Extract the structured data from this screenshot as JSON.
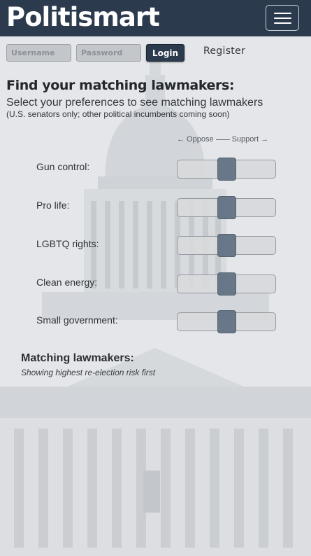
{
  "brand": {
    "name": "Politismart"
  },
  "navbar": {
    "menu_icon": "hamburger-menu-icon"
  },
  "login": {
    "username_placeholder": "Username",
    "password_placeholder": "Password",
    "login_label": "Login",
    "register_label": "Register"
  },
  "intro": {
    "heading": "Find your matching lawmakers:",
    "subheading": "Select your preferences to see matching lawmakers",
    "note": "(U.S. senators only; other political incumbents coming soon)"
  },
  "scale": {
    "oppose": "← Oppose",
    "support": "Support →"
  },
  "preferences": [
    {
      "label": "Gun control:",
      "value": 0.5
    },
    {
      "label": "Pro life:",
      "value": 0.5
    },
    {
      "label": "LGBTQ rights:",
      "value": 0.5
    },
    {
      "label": "Clean energy:",
      "value": 0.5
    },
    {
      "label": "Small government:",
      "value": 0.5
    }
  ],
  "results": {
    "title": "Matching lawmakers:",
    "note": "Showing highest re-election risk first"
  },
  "colors": {
    "navbar": "#2b3a4d",
    "thumb": "#5f6f80",
    "track": "#d9dadc"
  }
}
